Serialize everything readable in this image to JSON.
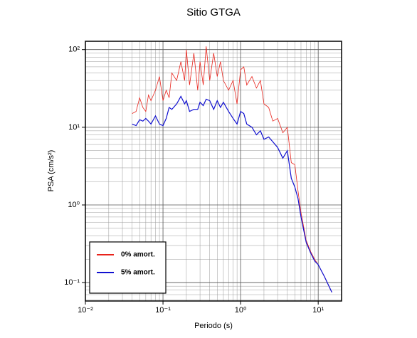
{
  "chart_data": {
    "type": "line",
    "title": "Sitio GTGA",
    "x_label": "Periodo (s)",
    "y_label": "PSA (cm/s²)",
    "log_x": true,
    "log_y": true,
    "grid": true,
    "legend": "lower left",
    "xlim": [
      0.01,
      20
    ],
    "ylim": [
      0.058,
      128
    ],
    "xticks": [
      {
        "value": 0.01,
        "label": "10⁻²"
      },
      {
        "value": 0.1,
        "label": "10⁻¹"
      },
      {
        "value": 1,
        "label": "10⁰"
      },
      {
        "value": 10,
        "label": "10¹"
      }
    ],
    "yticks": [
      {
        "value": 0.1,
        "label": "10⁻¹"
      },
      {
        "value": 1,
        "label": "10⁰"
      },
      {
        "value": 10,
        "label": "10¹"
      },
      {
        "value": 100,
        "label": "10²"
      }
    ],
    "xminorticks": [
      0.02,
      0.03,
      0.04,
      0.05,
      0.06,
      0.07,
      0.08,
      0.09,
      0.2,
      0.3,
      0.4,
      0.5,
      0.6,
      0.7,
      0.8,
      0.9,
      2,
      3,
      4,
      5,
      6,
      7,
      8,
      9,
      20
    ],
    "yminorticks": [
      0.06,
      0.07,
      0.08,
      0.09,
      0.2,
      0.3,
      0.4,
      0.5,
      0.6,
      0.7,
      0.8,
      0.9,
      2,
      3,
      4,
      5,
      6,
      7,
      8,
      9,
      20,
      30,
      40,
      50,
      60,
      70,
      80,
      90
    ],
    "x": [
      0.04,
      0.045,
      0.05,
      0.055,
      0.06,
      0.065,
      0.07,
      0.08,
      0.09,
      0.1,
      0.11,
      0.12,
      0.13,
      0.15,
      0.17,
      0.19,
      0.2,
      0.22,
      0.25,
      0.28,
      0.3,
      0.33,
      0.36,
      0.4,
      0.45,
      0.5,
      0.55,
      0.6,
      0.7,
      0.8,
      0.9,
      1.0,
      1.1,
      1.2,
      1.4,
      1.6,
      1.8,
      2.0,
      2.3,
      2.6,
      3.0,
      3.5,
      4.0,
      4.5,
      5.0,
      5.5,
      6,
      7,
      8,
      9,
      10,
      12,
      15
    ],
    "series": [
      {
        "name": "0% amort.",
        "color": "#e8231b",
        "values": [
          15,
          16,
          24,
          18,
          16,
          26,
          22,
          30,
          45,
          22,
          30,
          24,
          50,
          40,
          70,
          40,
          100,
          35,
          90,
          30,
          70,
          35,
          110,
          40,
          90,
          45,
          70,
          40,
          30,
          40,
          20,
          55,
          60,
          35,
          45,
          32,
          40,
          20,
          18,
          12,
          13,
          8.5,
          10,
          3.5,
          3.3,
          1.5,
          0.8,
          0.35,
          0.25,
          0.2,
          0.17,
          0.12,
          0.075
        ]
      },
      {
        "name": "5% amort.",
        "color": "#1010d0",
        "values": [
          11,
          10.5,
          12.5,
          12,
          13,
          12,
          11,
          14,
          11,
          10.5,
          13,
          18,
          17,
          20,
          25,
          20,
          22,
          16,
          17,
          17,
          21,
          19,
          23,
          22,
          17,
          22,
          18,
          21,
          16,
          13,
          11,
          16,
          15,
          11,
          10,
          8,
          9,
          7,
          7.5,
          6.5,
          5.5,
          4,
          5,
          2.2,
          1.7,
          1.2,
          0.7,
          0.33,
          0.24,
          0.19,
          0.17,
          0.12,
          0.075
        ]
      }
    ]
  }
}
